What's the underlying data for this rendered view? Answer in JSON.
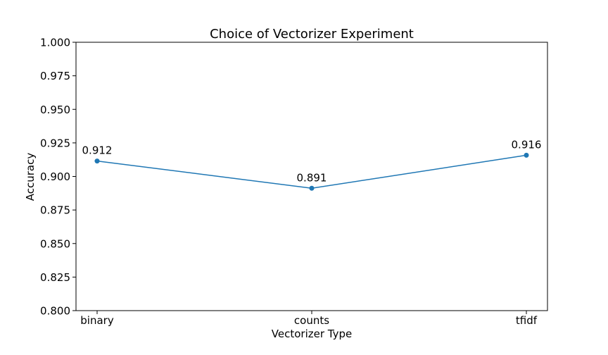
{
  "chart_data": {
    "type": "line",
    "title": "Choice of Vectorizer Experiment",
    "xlabel": "Vectorizer Type",
    "ylabel": "Accuracy",
    "categories": [
      "binary",
      "counts",
      "tfidf"
    ],
    "series": [
      {
        "values": [
          0.9115,
          0.8912,
          0.9158
        ],
        "labels": [
          "0.912",
          "0.891",
          "0.916"
        ]
      }
    ],
    "ylim": [
      0.8,
      1.0
    ],
    "yticks": [
      0.8,
      0.825,
      0.85,
      0.875,
      0.9,
      0.925,
      0.95,
      0.975,
      1.0
    ],
    "ytick_labels": [
      "0.800",
      "0.825",
      "0.850",
      "0.875",
      "0.900",
      "0.925",
      "0.950",
      "0.975",
      "1.000"
    ],
    "grid": false,
    "line_color": "#1f77b4",
    "marker": "circle"
  }
}
